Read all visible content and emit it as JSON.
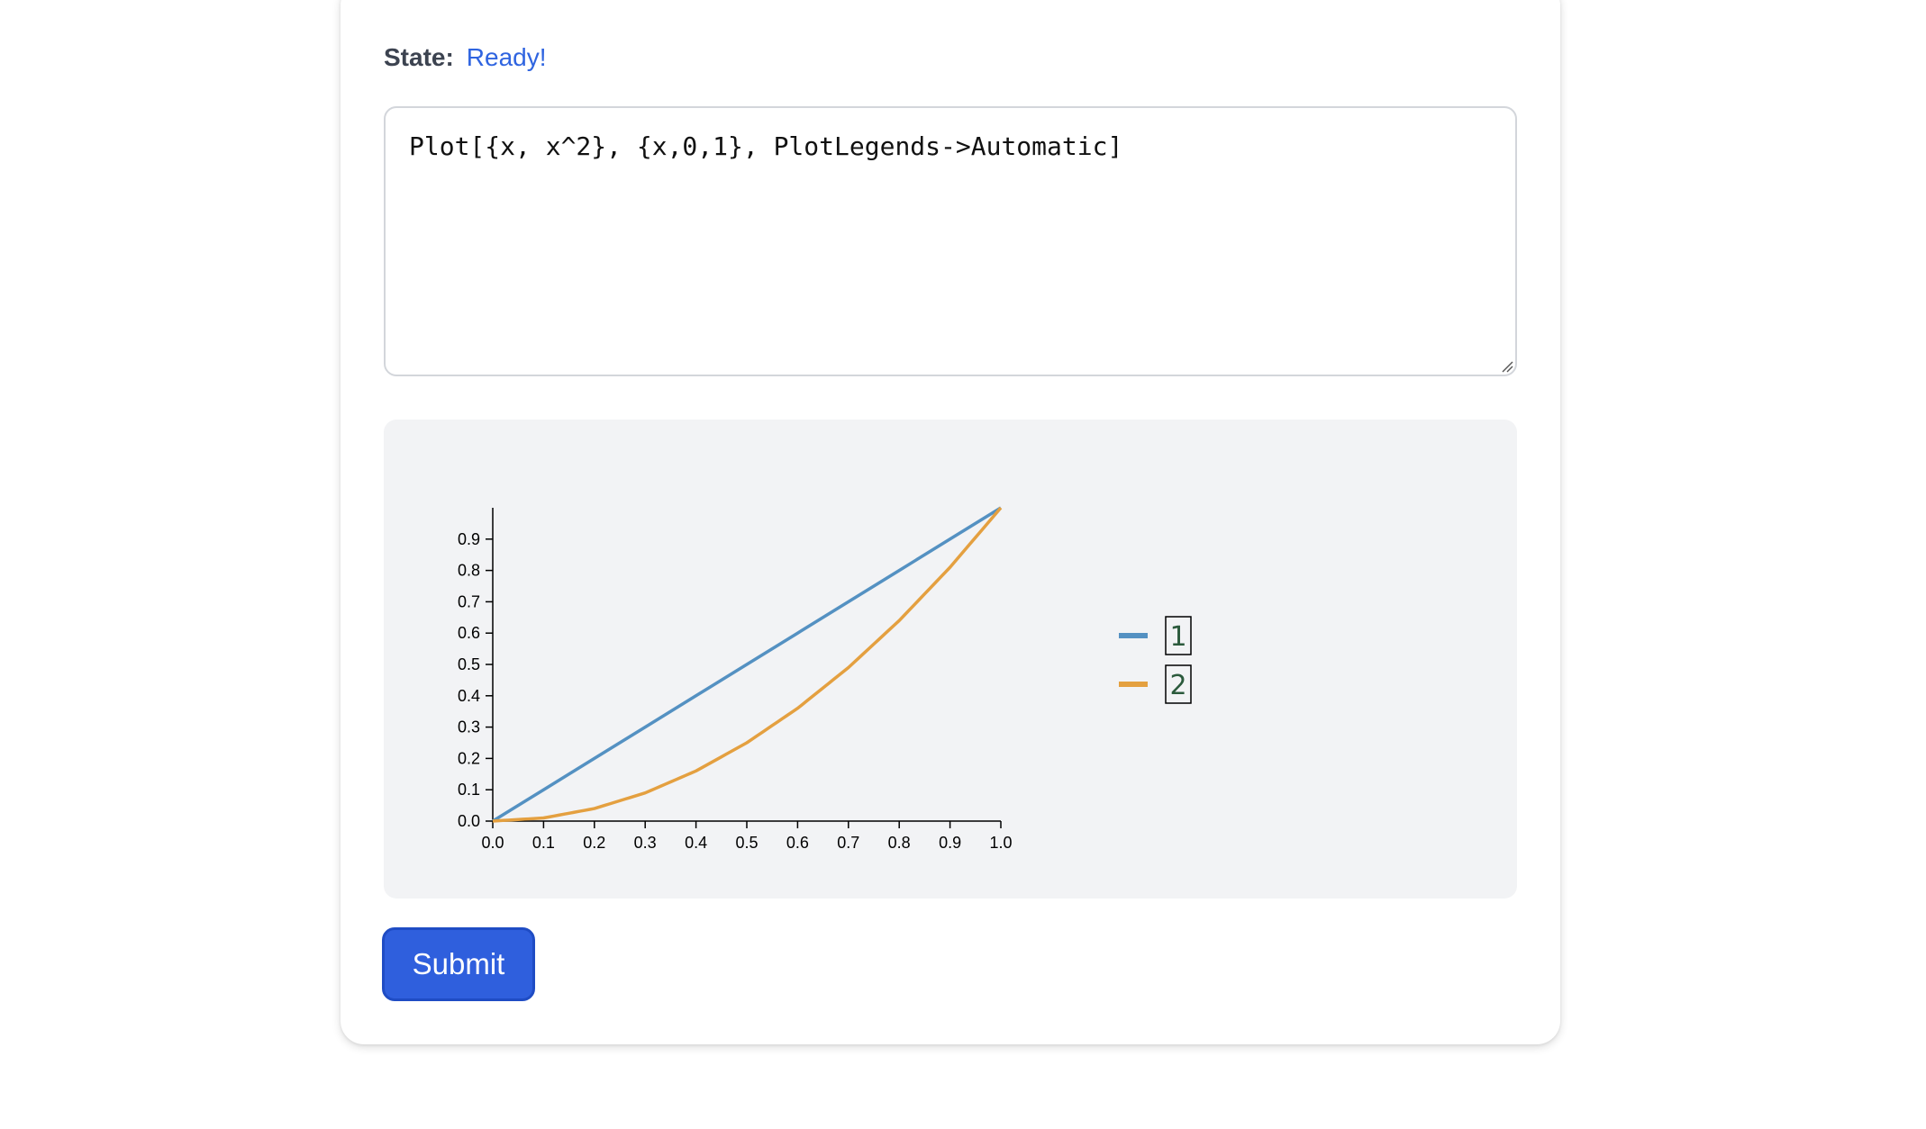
{
  "status": {
    "label": "State:",
    "value": "Ready!"
  },
  "editor": {
    "code": "Plot[{x, x^2}, {x,0,1}, PlotLegends->Automatic]"
  },
  "submit_button": {
    "label": "Submit"
  },
  "colors": {
    "series1": "#5491c2",
    "series2": "#e4a040",
    "status_ready": "#2f64e0",
    "submit_bg": "#2f5fdd",
    "output_bg": "#f2f3f5"
  },
  "chart_data": {
    "type": "line",
    "title": "",
    "xlabel": "",
    "ylabel": "",
    "xlim": [
      0,
      1
    ],
    "ylim": [
      0,
      1
    ],
    "x_ticks": [
      "0.0",
      "0.1",
      "0.2",
      "0.3",
      "0.4",
      "0.5",
      "0.6",
      "0.7",
      "0.8",
      "0.9",
      "1.0"
    ],
    "y_ticks": [
      "0.0",
      "0.1",
      "0.2",
      "0.3",
      "0.4",
      "0.5",
      "0.6",
      "0.7",
      "0.8",
      "0.9"
    ],
    "x": [
      0.0,
      0.1,
      0.2,
      0.3,
      0.4,
      0.5,
      0.6,
      0.7,
      0.8,
      0.9,
      1.0
    ],
    "series": [
      {
        "name": "1",
        "values": [
          0.0,
          0.1,
          0.2,
          0.3,
          0.4,
          0.5,
          0.6,
          0.7,
          0.8,
          0.9,
          1.0
        ]
      },
      {
        "name": "2",
        "values": [
          0.0,
          0.01,
          0.04,
          0.09,
          0.16,
          0.25,
          0.36,
          0.49,
          0.64,
          0.81,
          1.0
        ]
      }
    ],
    "legend": [
      "1",
      "2"
    ],
    "legend_position": "right",
    "grid": false
  }
}
